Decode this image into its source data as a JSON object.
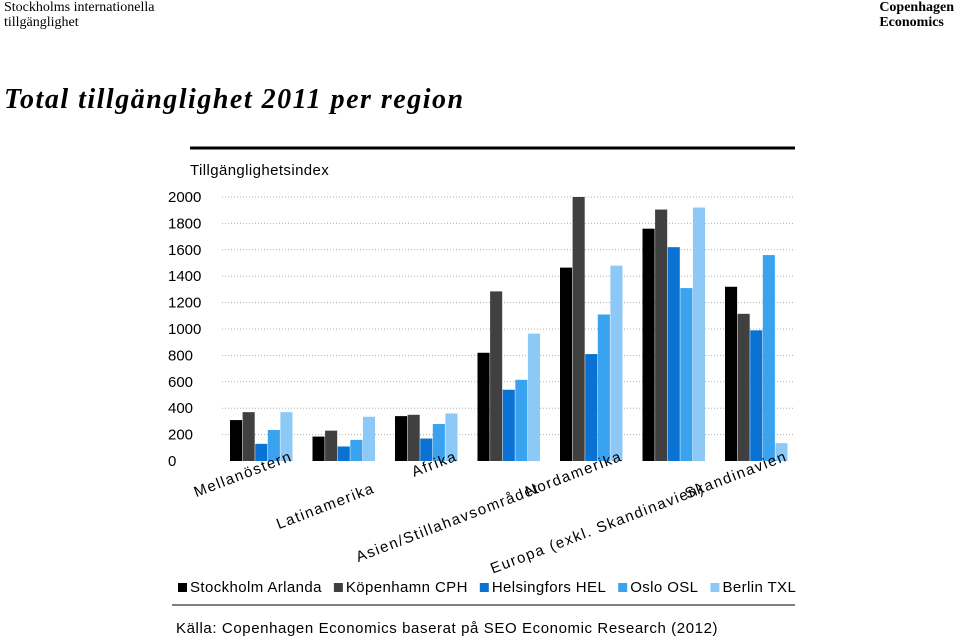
{
  "header": {
    "left_line1": "Stockholms internationella",
    "left_line2": "tillgänglighet",
    "right_line1": "Copenhagen",
    "right_line2": "Economics"
  },
  "title": "Total tillgänglighet 2011 per region",
  "source": "Källa: Copenhagen Economics baserat på SEO Economic Research  (2012)",
  "chart_data": {
    "type": "bar",
    "ylabel": "Tillgänglighetsindex",
    "ylim": [
      0,
      2000
    ],
    "yticks": [
      0,
      200,
      400,
      600,
      800,
      1000,
      1200,
      1400,
      1600,
      1800,
      2000
    ],
    "grid": true,
    "legend_position": "bottom",
    "categories": [
      "Mellanöstern",
      "Latinamerika",
      "Afrika",
      "Asien/Stillahavsområdet",
      "Nordamerika",
      "Europa (exkl. Skandinavien)",
      "Skandinavien"
    ],
    "series": [
      {
        "name": "Stockholm Arlanda",
        "color": "#000000",
        "values": [
          310,
          185,
          340,
          820,
          1465,
          1760,
          1320
        ]
      },
      {
        "name": "Köpenhamn CPH",
        "color": "#404040",
        "values": [
          370,
          230,
          350,
          1285,
          2000,
          1905,
          1115
        ]
      },
      {
        "name": "Helsingfors HEL",
        "color": "#0a72d2",
        "values": [
          130,
          110,
          170,
          540,
          810,
          1620,
          990
        ]
      },
      {
        "name": "Oslo OSL",
        "color": "#3aa3f0",
        "values": [
          235,
          160,
          280,
          615,
          1110,
          1310,
          1560
        ]
      },
      {
        "name": "Berlin TXL",
        "color": "#8cc9f7",
        "values": [
          370,
          335,
          360,
          965,
          1480,
          1920,
          135
        ]
      }
    ]
  }
}
